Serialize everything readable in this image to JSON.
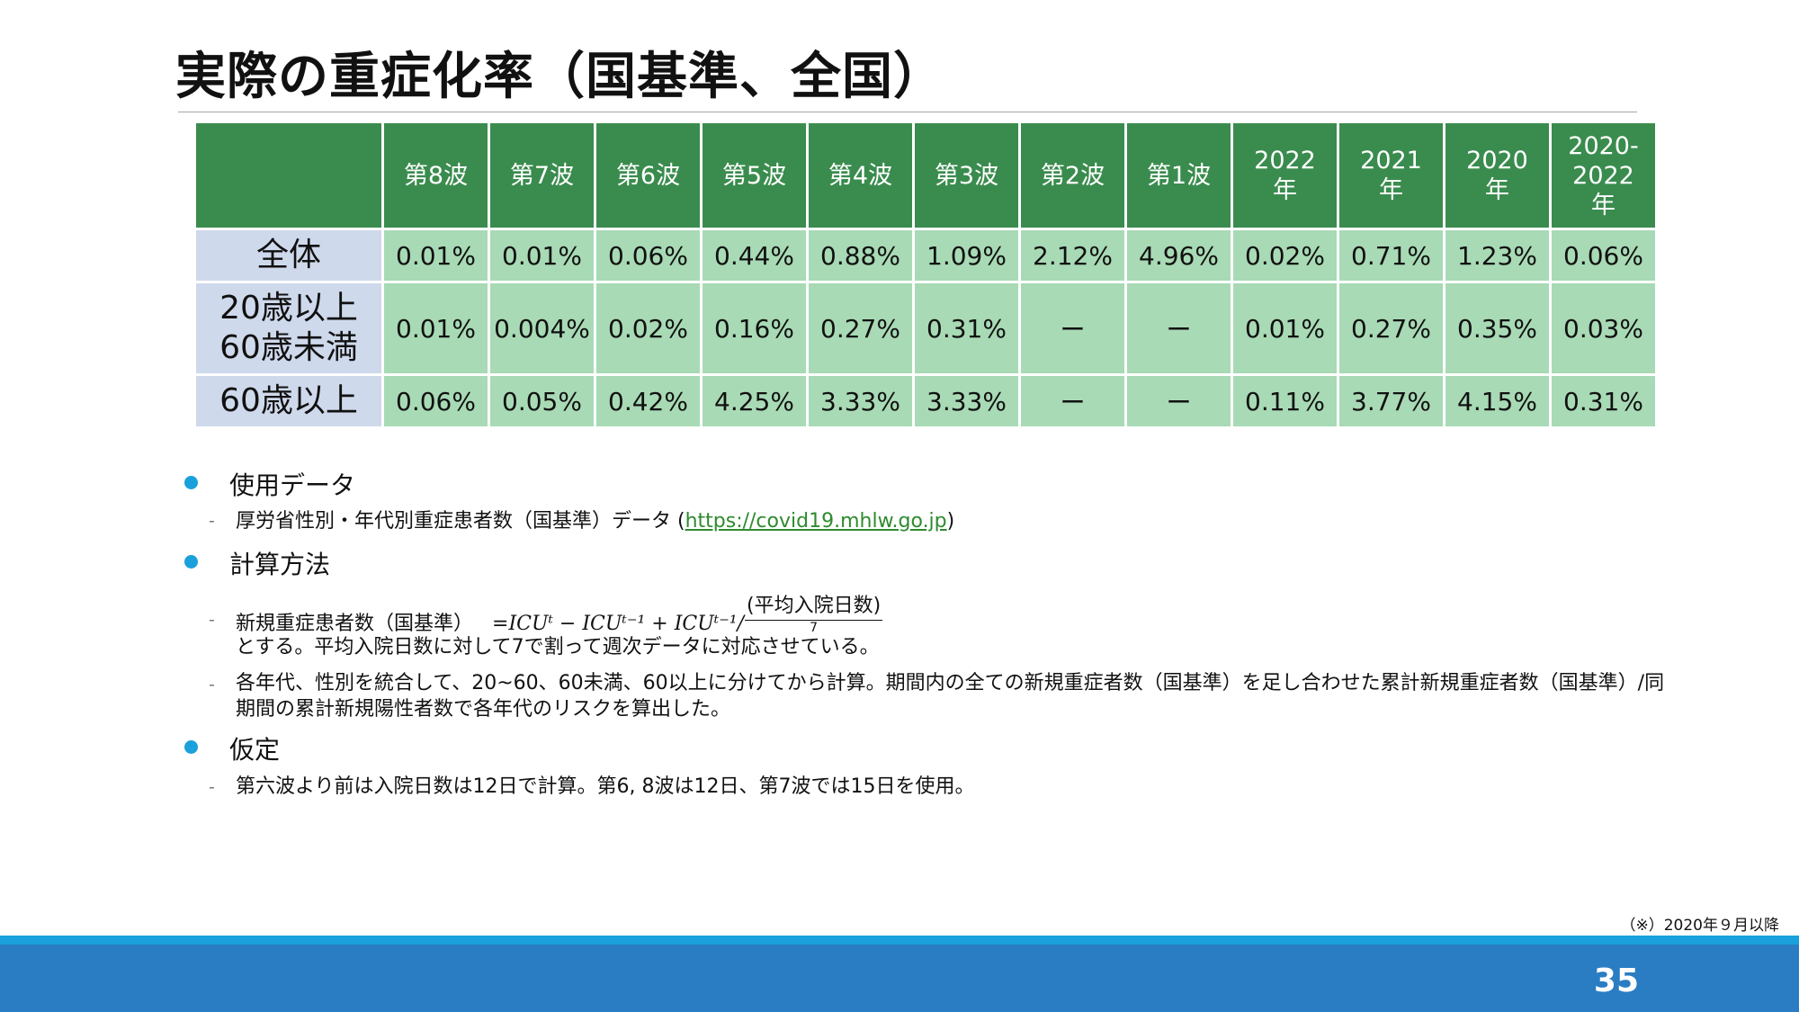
{
  "title": "実際の重症化率（国基準、全国）",
  "table": {
    "columns": [
      "第8波",
      "第7波",
      "第6波",
      "第5波",
      "第4波",
      "第3波",
      "第2波",
      "第1波"
    ],
    "year_columns": [
      {
        "lines": [
          "2022",
          "年"
        ]
      },
      {
        "lines": [
          "2021",
          "年"
        ]
      },
      {
        "lines": [
          "2020",
          "年"
        ]
      },
      {
        "lines": [
          "2020-",
          "2022",
          "年"
        ]
      }
    ],
    "rows": [
      {
        "label_lines": [
          "全体"
        ],
        "values": [
          "0.01%",
          "0.01%",
          "0.06%",
          "0.44%",
          "0.88%",
          "1.09%",
          "2.12%",
          "4.96%",
          "0.02%",
          "0.71%",
          "1.23%",
          "0.06%"
        ]
      },
      {
        "label_lines": [
          "20歳以上",
          "60歳未満"
        ],
        "values": [
          "0.01%",
          "0.004%",
          "0.02%",
          "0.16%",
          "0.27%",
          "0.31%",
          "ー",
          "ー",
          "0.01%",
          "0.27%",
          "0.35%",
          "0.03%"
        ]
      },
      {
        "label_lines": [
          "60歳以上"
        ],
        "values": [
          "0.06%",
          "0.05%",
          "0.42%",
          "4.25%",
          "3.33%",
          "3.33%",
          "ー",
          "ー",
          "0.11%",
          "3.77%",
          "4.15%",
          "0.31%"
        ]
      }
    ]
  },
  "sections": {
    "data_heading": "使用データ",
    "data_item_text": "厚労省性別・年代別重症患者数（国基準）データ (",
    "data_item_link": "https://covid19.mhlw.go.jp",
    "data_item_close": ")",
    "method_heading": "計算方法",
    "method_formula_label": "新規重症患者数（国基準）",
    "method_formula_expr": "=ICUᵗ − ICUᵗ⁻¹ + ICUᵗ⁻¹/",
    "method_formula_num": "(平均入院日数)",
    "method_formula_den": "7",
    "method_formula_note": "とする。平均入院日数に対して7で割って週次データに対応させている。",
    "method_item2": "各年代、性別を統合して、20~60、60未満、60以上に分けてから計算。期間内の全ての新規重症者数（国基準）を足し合わせた累計新規重症者数（国基準）/同期間の累計新規陽性者数で各年代のリスクを算出した。",
    "assume_heading": "仮定",
    "assume_item": "第六波より前は入院日数は12日で計算。第6, 8波は12日、第7波では15日を使用。",
    "dash": "-"
  },
  "footnote": "（※）2020年９月以降",
  "page_number": "35",
  "colors": {
    "header_green": "#3a8c4e",
    "cell_green": "#a8dab5",
    "rowhead_blue": "#cfd9ec",
    "bullet": "#1aa0db",
    "footer": "#2a7dc3"
  }
}
